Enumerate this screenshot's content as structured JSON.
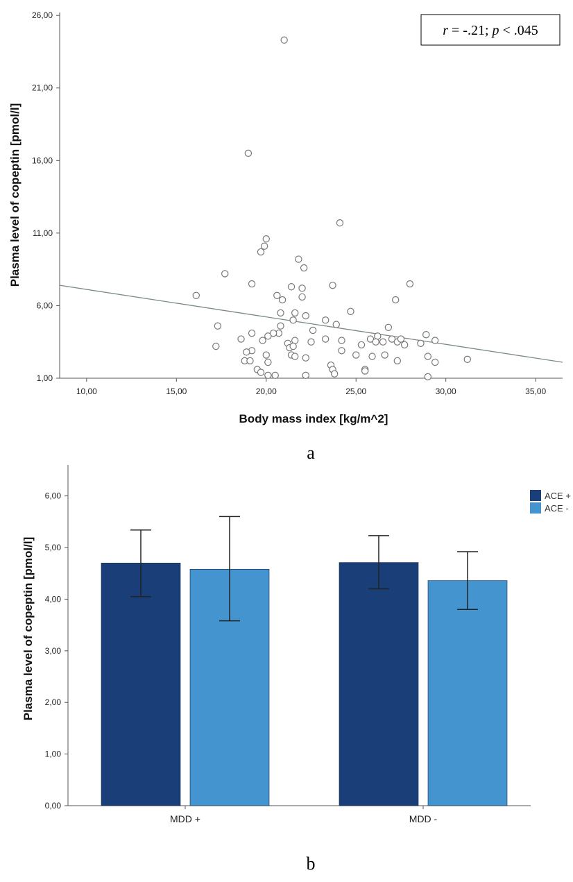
{
  "panel_labels": [
    "a",
    "b"
  ],
  "chart_data": [
    {
      "type": "scatter",
      "xlabel": "Body mass index [kg/m^2]",
      "ylabel": "Plasma level of copeptin [pmol/l]",
      "xlim": [
        8.5,
        36.5
      ],
      "ylim": [
        1.0,
        26.2
      ],
      "x_ticks": [
        "10,00",
        "15,00",
        "20,00",
        "25,00",
        "30,00",
        "35,00"
      ],
      "y_ticks": [
        "1,00",
        "6,00",
        "11,00",
        "16,00",
        "21,00",
        "26,00"
      ],
      "annotation": {
        "r_symbol": "r",
        "r_value": " = -.21; ",
        "p_symbol": "p",
        "p_value": " < .045"
      },
      "fit_line": {
        "x": [
          8.5,
          36.5
        ],
        "y": [
          7.4,
          2.1
        ]
      },
      "points": [
        {
          "x": 21.0,
          "y": 24.3
        },
        {
          "x": 19.0,
          "y": 16.5
        },
        {
          "x": 24.1,
          "y": 11.7
        },
        {
          "x": 20.0,
          "y": 10.6
        },
        {
          "x": 19.9,
          "y": 10.1
        },
        {
          "x": 19.7,
          "y": 9.7
        },
        {
          "x": 21.8,
          "y": 9.2
        },
        {
          "x": 22.1,
          "y": 8.6
        },
        {
          "x": 17.7,
          "y": 8.2
        },
        {
          "x": 19.2,
          "y": 7.5
        },
        {
          "x": 21.4,
          "y": 7.3
        },
        {
          "x": 22.0,
          "y": 7.2
        },
        {
          "x": 23.7,
          "y": 7.4
        },
        {
          "x": 28.0,
          "y": 7.5
        },
        {
          "x": 16.1,
          "y": 6.7
        },
        {
          "x": 20.6,
          "y": 6.7
        },
        {
          "x": 20.9,
          "y": 6.4
        },
        {
          "x": 27.2,
          "y": 6.4
        },
        {
          "x": 22.0,
          "y": 6.6
        },
        {
          "x": 20.8,
          "y": 5.5
        },
        {
          "x": 21.6,
          "y": 5.5
        },
        {
          "x": 22.2,
          "y": 5.3
        },
        {
          "x": 24.7,
          "y": 5.6
        },
        {
          "x": 17.3,
          "y": 4.6
        },
        {
          "x": 20.8,
          "y": 4.6
        },
        {
          "x": 21.5,
          "y": 5.0
        },
        {
          "x": 23.3,
          "y": 5.0
        },
        {
          "x": 23.9,
          "y": 4.7
        },
        {
          "x": 26.8,
          "y": 4.5
        },
        {
          "x": 19.2,
          "y": 4.1
        },
        {
          "x": 20.1,
          "y": 3.9
        },
        {
          "x": 20.7,
          "y": 4.1
        },
        {
          "x": 20.4,
          "y": 4.1
        },
        {
          "x": 22.6,
          "y": 4.3
        },
        {
          "x": 26.2,
          "y": 3.9
        },
        {
          "x": 28.9,
          "y": 4.0
        },
        {
          "x": 18.6,
          "y": 3.7
        },
        {
          "x": 19.8,
          "y": 3.6
        },
        {
          "x": 21.2,
          "y": 3.4
        },
        {
          "x": 21.6,
          "y": 3.6
        },
        {
          "x": 22.5,
          "y": 3.5
        },
        {
          "x": 23.3,
          "y": 3.7
        },
        {
          "x": 24.2,
          "y": 3.6
        },
        {
          "x": 25.3,
          "y": 3.3
        },
        {
          "x": 25.8,
          "y": 3.7
        },
        {
          "x": 26.1,
          "y": 3.5
        },
        {
          "x": 26.5,
          "y": 3.5
        },
        {
          "x": 27.0,
          "y": 3.7
        },
        {
          "x": 27.3,
          "y": 3.5
        },
        {
          "x": 27.5,
          "y": 3.7
        },
        {
          "x": 27.7,
          "y": 3.3
        },
        {
          "x": 28.6,
          "y": 3.4
        },
        {
          "x": 29.4,
          "y": 3.6
        },
        {
          "x": 17.2,
          "y": 3.2
        },
        {
          "x": 21.3,
          "y": 3.1
        },
        {
          "x": 21.5,
          "y": 3.2
        },
        {
          "x": 19.2,
          "y": 2.9
        },
        {
          "x": 18.9,
          "y": 2.8
        },
        {
          "x": 20.0,
          "y": 2.6
        },
        {
          "x": 21.4,
          "y": 2.6
        },
        {
          "x": 24.2,
          "y": 2.9
        },
        {
          "x": 25.0,
          "y": 2.6
        },
        {
          "x": 25.9,
          "y": 2.5
        },
        {
          "x": 26.6,
          "y": 2.6
        },
        {
          "x": 18.8,
          "y": 2.2
        },
        {
          "x": 19.1,
          "y": 2.2
        },
        {
          "x": 20.1,
          "y": 2.1
        },
        {
          "x": 22.2,
          "y": 2.4
        },
        {
          "x": 21.6,
          "y": 2.5
        },
        {
          "x": 23.6,
          "y": 1.9
        },
        {
          "x": 27.3,
          "y": 2.2
        },
        {
          "x": 29.0,
          "y": 2.5
        },
        {
          "x": 29.4,
          "y": 2.1
        },
        {
          "x": 31.2,
          "y": 2.3
        },
        {
          "x": 19.5,
          "y": 1.6
        },
        {
          "x": 19.7,
          "y": 1.4
        },
        {
          "x": 23.7,
          "y": 1.6
        },
        {
          "x": 25.5,
          "y": 1.6
        },
        {
          "x": 20.1,
          "y": 1.2
        },
        {
          "x": 20.5,
          "y": 1.2
        },
        {
          "x": 22.2,
          "y": 1.2
        },
        {
          "x": 23.8,
          "y": 1.3
        },
        {
          "x": 25.5,
          "y": 1.5
        },
        {
          "x": 29.0,
          "y": 1.1
        }
      ]
    },
    {
      "type": "bar",
      "ylabel": "Plasma level of copeptin [pmol/l]",
      "categories": [
        "MDD +",
        "MDD -"
      ],
      "ylim": [
        0,
        6.6
      ],
      "y_ticks": [
        "0,00",
        "1,00",
        "2,00",
        "3,00",
        "4,00",
        "5,00",
        "6,00"
      ],
      "series": [
        {
          "name": "ACE +",
          "color": "#1a3f78",
          "values": [
            4.7,
            4.71
          ],
          "err_low": [
            4.05,
            4.2
          ],
          "err_high": [
            5.34,
            5.23
          ]
        },
        {
          "name": "ACE -",
          "color": "#4494cf",
          "values": [
            4.58,
            4.36
          ],
          "err_low": [
            3.58,
            3.8
          ],
          "err_high": [
            5.6,
            4.92
          ]
        }
      ],
      "legend_position": "top-right"
    }
  ]
}
